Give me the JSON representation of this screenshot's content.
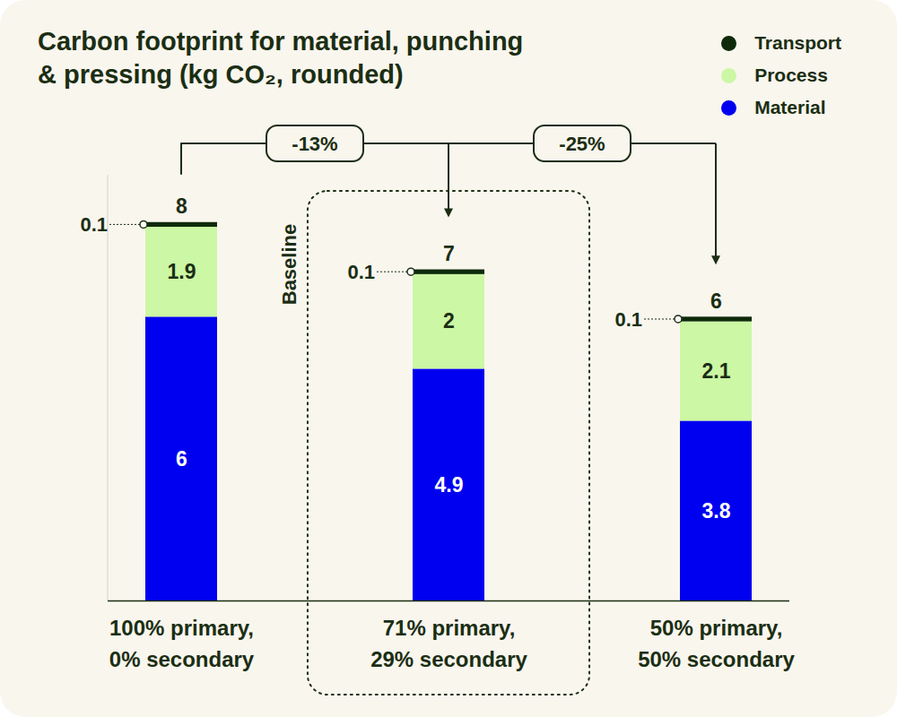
{
  "chart_data": {
    "type": "bar",
    "title": "Carbon footprint for material, punching\n& pressing (kg CO₂, rounded)",
    "categories": [
      "100% primary,\n0% secondary",
      "71% primary,\n29% secondary",
      "50% primary,\n50% secondary"
    ],
    "series": [
      {
        "name": "Material",
        "color": "#0000f0",
        "values": [
          6,
          4.9,
          3.8
        ]
      },
      {
        "name": "Process",
        "color": "#ccf7a4",
        "values": [
          1.9,
          2,
          2.1
        ]
      },
      {
        "name": "Transport",
        "color": "#0e2a0a",
        "values": [
          0.1,
          0.1,
          0.1
        ]
      }
    ],
    "totals": [
      8,
      7,
      6
    ],
    "stacked": true,
    "data_labels": true,
    "legend": "top-right",
    "grid": false,
    "tick_labels": "x",
    "ylim": [
      0,
      9
    ],
    "yticks": [
      0
    ],
    "annotations": [
      {
        "from": "100% primary,\n0% secondary",
        "to": "71% primary,\n29% secondary",
        "text": "-13%"
      },
      {
        "from": "100% primary,\n0% secondary",
        "to": "50% primary,\n50% secondary",
        "text": "-25%"
      }
    ],
    "highlight": {
      "category": "71% primary,\n29% secondary",
      "text": "Baseline"
    }
  }
}
